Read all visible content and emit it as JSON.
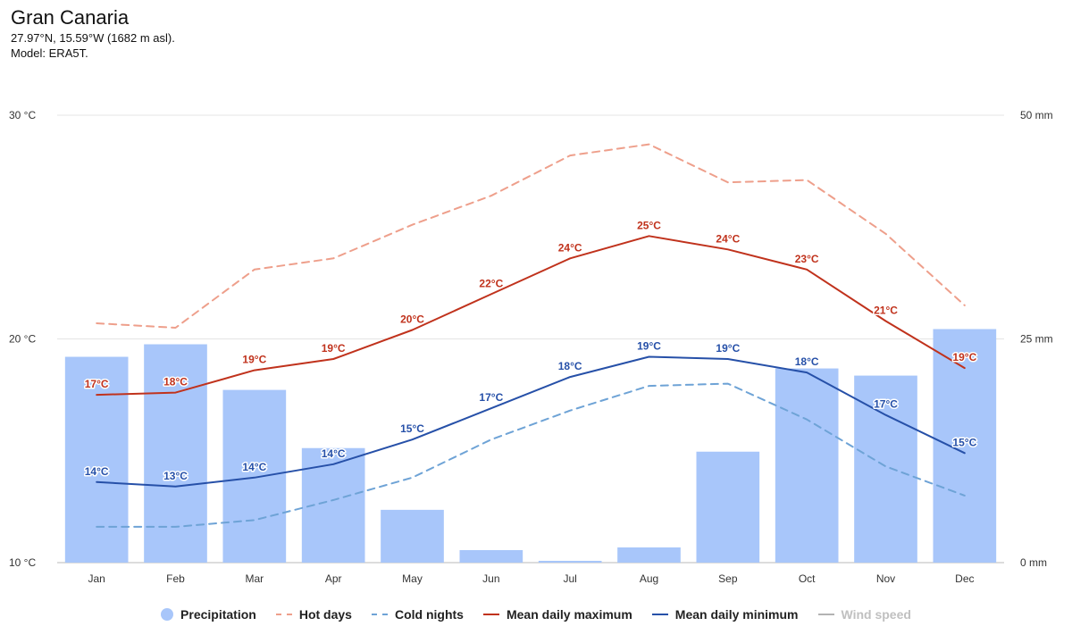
{
  "header": {
    "title": "Gran Canaria",
    "location": "27.97°N, 15.59°W (1682 m asl).",
    "model": "Model: ERA5T."
  },
  "legend": [
    {
      "label": "Precipitation",
      "symbol": "dot",
      "color": "#a8c6fa",
      "enabled": true
    },
    {
      "label": "Hot days",
      "symbol": "dash",
      "color": "#ee9f8b",
      "enabled": true
    },
    {
      "label": "Cold nights",
      "symbol": "dash",
      "color": "#6ea3d6",
      "enabled": true
    },
    {
      "label": "Mean daily maximum",
      "symbol": "line",
      "color": "#c0321c",
      "enabled": true
    },
    {
      "label": "Mean daily minimum",
      "symbol": "line",
      "color": "#2650a8",
      "enabled": true
    },
    {
      "label": "Wind speed",
      "symbol": "line",
      "color": "#b3b3b3",
      "enabled": false
    }
  ],
  "chart_data": {
    "type": "bar",
    "categories": [
      "Jan",
      "Feb",
      "Mar",
      "Apr",
      "May",
      "Jun",
      "Jul",
      "Aug",
      "Sep",
      "Oct",
      "Nov",
      "Dec"
    ],
    "y_left": {
      "min": 10,
      "max": 30,
      "ticks": [
        10,
        20,
        30
      ],
      "unit": "°C"
    },
    "y_right": {
      "min": 0,
      "max": 50,
      "ticks": [
        0,
        25,
        50
      ],
      "unit": "mm"
    },
    "grid": true,
    "legend_position": "bottom",
    "series": [
      {
        "name": "Precipitation",
        "type": "bar",
        "axis": "right",
        "color": "#a8c6fa",
        "values": [
          23,
          24.4,
          19.3,
          12.8,
          5.9,
          1.4,
          0.2,
          1.7,
          12.4,
          21.7,
          20.9,
          26.1
        ]
      },
      {
        "name": "Hot days",
        "type": "line",
        "dashed": true,
        "axis": "left",
        "color": "#ee9f8b",
        "values": [
          20.7,
          20.5,
          23.1,
          23.6,
          25.1,
          26.4,
          28.2,
          28.7,
          27.0,
          27.1,
          24.7,
          21.5
        ]
      },
      {
        "name": "Cold nights",
        "type": "line",
        "dashed": true,
        "axis": "left",
        "color": "#6ea3d6",
        "values": [
          11.6,
          11.6,
          11.9,
          12.8,
          13.8,
          15.5,
          16.8,
          17.9,
          18.0,
          16.4,
          14.3,
          13.0
        ]
      },
      {
        "name": "Mean daily maximum",
        "type": "line",
        "axis": "left",
        "color": "#c0321c",
        "values": [
          17.5,
          17.6,
          18.6,
          19.1,
          20.4,
          22.0,
          23.6,
          24.6,
          24.0,
          23.1,
          20.8,
          18.7
        ],
        "labels": [
          "17°C",
          "18°C",
          "19°C",
          "19°C",
          "20°C",
          "22°C",
          "24°C",
          "25°C",
          "24°C",
          "23°C",
          "21°C",
          "19°C"
        ]
      },
      {
        "name": "Mean daily minimum",
        "type": "line",
        "axis": "left",
        "color": "#2650a8",
        "values": [
          13.6,
          13.4,
          13.8,
          14.4,
          15.5,
          16.9,
          18.3,
          19.2,
          19.1,
          18.5,
          16.6,
          14.9
        ],
        "labels": [
          "14°C",
          "13°C",
          "14°C",
          "14°C",
          "15°C",
          "17°C",
          "18°C",
          "19°C",
          "19°C",
          "18°C",
          "17°C",
          "15°C"
        ]
      }
    ]
  }
}
